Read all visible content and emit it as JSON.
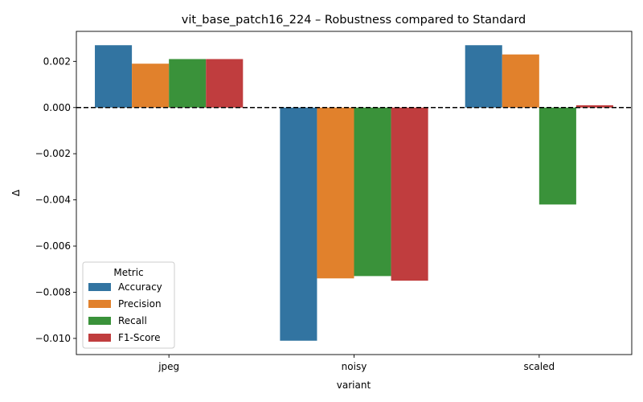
{
  "chart_data": {
    "type": "bar",
    "title": "vit_base_patch16_224 – Robustness compared to Standard",
    "xlabel": "variant",
    "ylabel": "Δ",
    "categories": [
      "jpeg",
      "noisy",
      "scaled"
    ],
    "series": [
      {
        "name": "Accuracy",
        "color": "#3274a1",
        "values": [
          0.0027,
          -0.0101,
          0.0027
        ]
      },
      {
        "name": "Precision",
        "color": "#e1812c",
        "values": [
          0.0019,
          -0.0074,
          0.0023
        ]
      },
      {
        "name": "Recall",
        "color": "#3a923a",
        "values": [
          0.0021,
          -0.0073,
          -0.0042
        ]
      },
      {
        "name": "F1-Score",
        "color": "#c03d3e",
        "values": [
          0.0021,
          -0.0075,
          0.0001
        ]
      }
    ],
    "ylim": [
      -0.0107,
      0.0033
    ],
    "yticks": [
      0.002,
      0.0,
      -0.002,
      -0.004,
      -0.006,
      -0.008,
      -0.01
    ],
    "ytick_labels": [
      "0.002",
      "0.000",
      "−0.002",
      "−0.004",
      "−0.006",
      "−0.008",
      "−0.010"
    ],
    "reference_line": {
      "y": 0,
      "style": "dashed",
      "color": "#000000"
    },
    "grid": false,
    "legend": {
      "title": "Metric",
      "position": "lower-left"
    }
  }
}
